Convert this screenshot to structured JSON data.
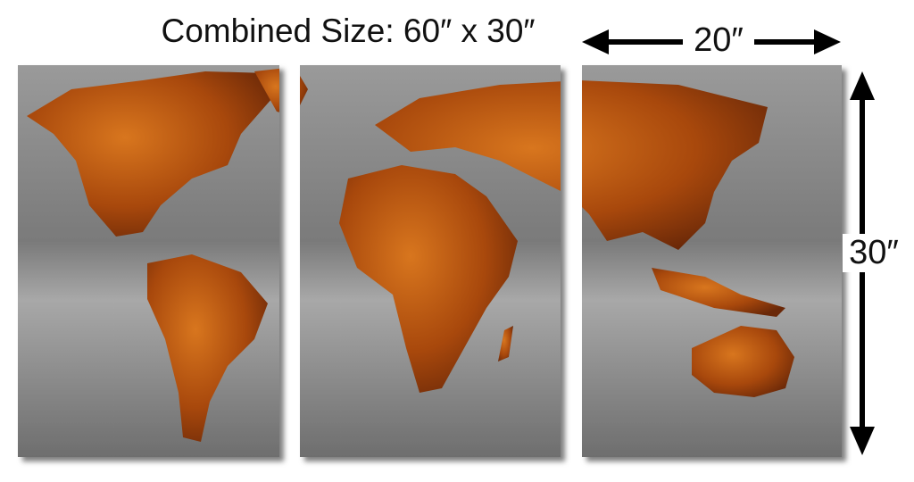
{
  "title": "Combined Size: 60″ x 30″",
  "panel_width_label": "20″",
  "panel_height_label": "30″",
  "panel_count": 3,
  "colors": {
    "continent": "#b4500f",
    "background": "#8a8a8a",
    "arrow": "#000000"
  }
}
